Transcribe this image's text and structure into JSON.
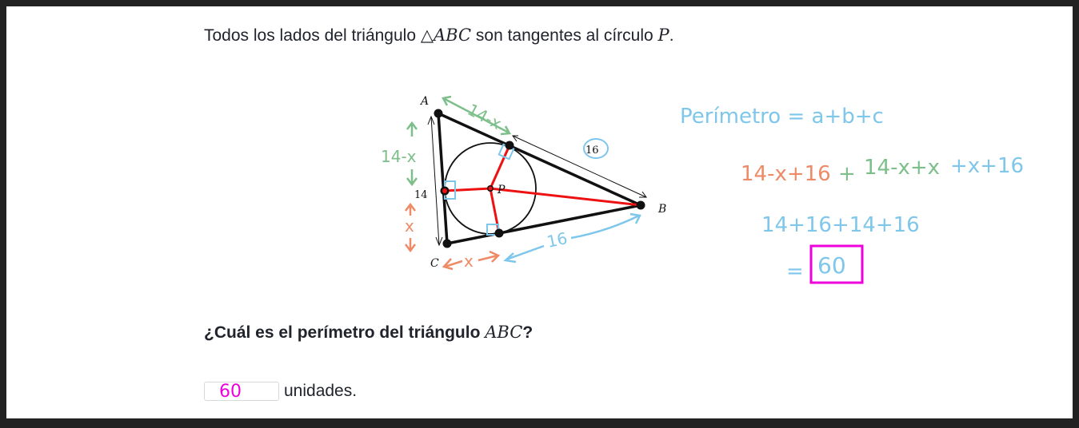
{
  "statement": {
    "prefix": "Todos los lados del triángulo ",
    "triangle_symbol": "△",
    "triangle_name": "ABC",
    "middle": " son tangentes al círculo ",
    "circle_name": "P",
    "suffix": "."
  },
  "figure": {
    "vertex_a": "A",
    "vertex_b": "B",
    "vertex_c": "C",
    "center": "P",
    "side_ac_length": "14",
    "tangent_b_length": "16"
  },
  "annotations": {
    "a_top": "14-x",
    "a_left": "14-x",
    "c_left": "x",
    "c_bottom": "x",
    "b_bottom": "16",
    "perimeter_formula": "Perímetro = a+b+c",
    "step1_part1": "14-x+16",
    "step1_plus": "+",
    "step1_part2": "14-x+x",
    "step1_part3": "+x+16",
    "step2": "14+16+14+16",
    "step3_eq": "=",
    "step3_result": "60"
  },
  "question": {
    "prefix": "¿Cuál es el perímetro del triángulo ",
    "triangle_name": "ABC",
    "suffix": "?"
  },
  "answer": {
    "value": "60",
    "unit": "unidades."
  },
  "colors": {
    "green": "#7dbf8a",
    "orange": "#ee8a66",
    "blue": "#7ec6ea",
    "magenta": "#ee00dd",
    "red": "#ee1111"
  }
}
